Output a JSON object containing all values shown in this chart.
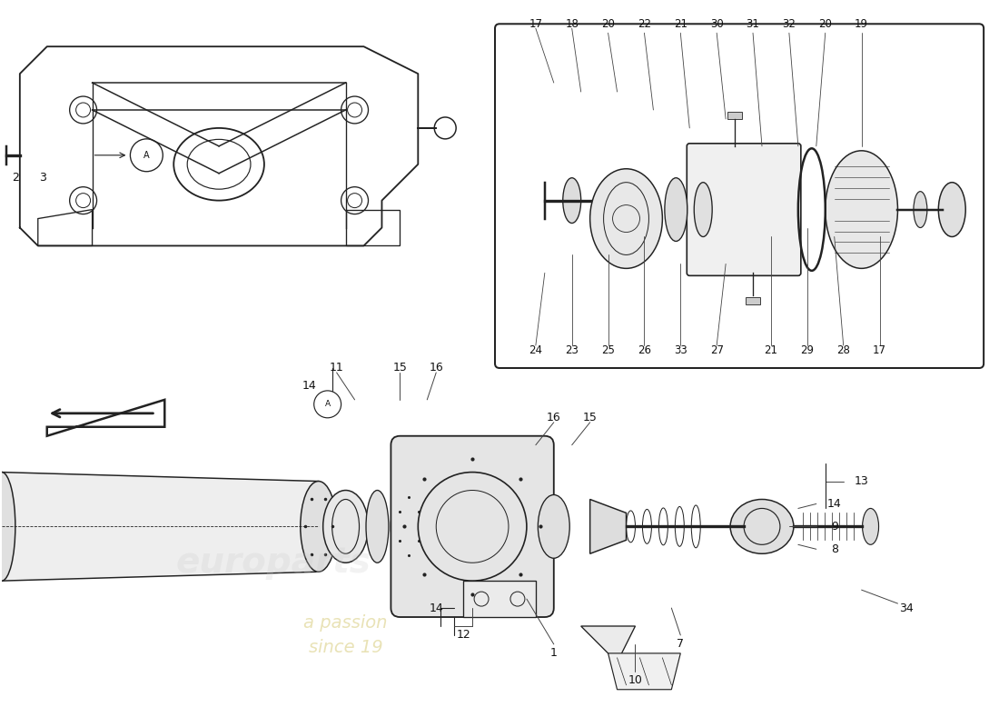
{
  "bg_color": "#ffffff",
  "watermark_text": "a passion\nsince 19",
  "watermark_color": "#d4c97a",
  "watermark_alpha": 0.35,
  "brand_text": "euroParts",
  "brand_color": "#cccccc",
  "brand_alpha": 0.3,
  "fig_width": 11.0,
  "fig_height": 8.0,
  "line_color": "#222222",
  "line_width": 1.2,
  "label_fontsize": 9,
  "label_color": "#111111"
}
